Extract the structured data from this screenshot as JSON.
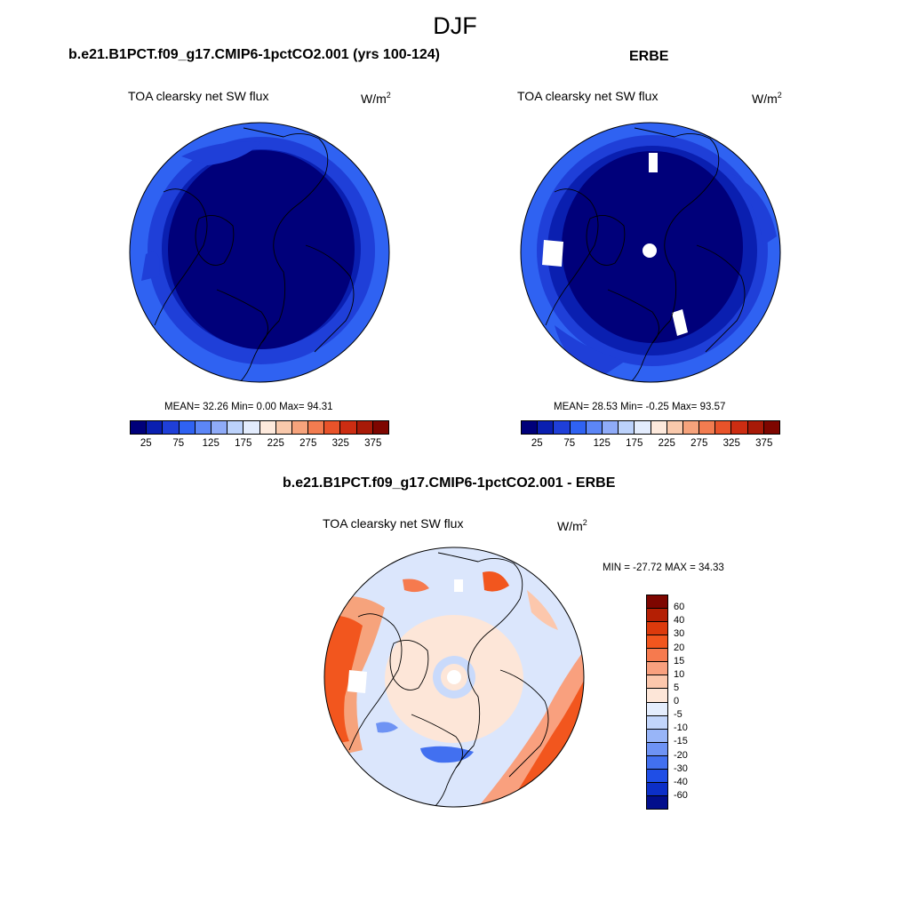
{
  "figure": {
    "season": "DJF"
  },
  "panels": [
    {
      "title": "b.e21.B1PCT.f09_g17.CMIP6-1pctCO2.001 (yrs 100-124)",
      "variable": "TOA clearsky net SW flux",
      "units": "W/m",
      "units_sup": "2",
      "stats": "MEAN=  32.26  Min=   0.00  Max=  94.31"
    },
    {
      "title": "ERBE",
      "variable": "TOA clearsky net SW flux",
      "units": "W/m",
      "units_sup": "2",
      "stats": "MEAN=  28.53  Min=  -0.25  Max=  93.57"
    },
    {
      "title": "b.e21.B1PCT.f09_g17.CMIP6-1pctCO2.001 - ERBE",
      "variable": "TOA clearsky net SW flux",
      "units": "W/m",
      "units_sup": "2",
      "stats": "MIN = -27.72 MAX =  34.33"
    }
  ],
  "colorbar_abs": {
    "colors": [
      "#00007a",
      "#0a1fb0",
      "#1f3fd8",
      "#2f62f2",
      "#5c86f6",
      "#8fabf8",
      "#bcd2fb",
      "#e3ecfd",
      "#fde9dc",
      "#f9c9ac",
      "#f6a37c",
      "#f27c50",
      "#e8532a",
      "#cc2d12",
      "#a81a08",
      "#7e0600"
    ],
    "tick_labels": [
      "25",
      "75",
      "125",
      "175",
      "225",
      "275",
      "325",
      "375"
    ]
  },
  "colorbar_diff": {
    "colors": [
      "#7e0600",
      "#b41f04",
      "#dc3a0c",
      "#f2561e",
      "#f67a4e",
      "#f9a07e",
      "#fcc7ac",
      "#fde6d8",
      "#e4edfd",
      "#c2d5fb",
      "#98b5f8",
      "#6e93f4",
      "#4270f0",
      "#1f4ee6",
      "#0c2fc8",
      "#020e8c"
    ],
    "tick_labels": [
      "60",
      "40",
      "30",
      "20",
      "15",
      "10",
      "5",
      "0",
      "-5",
      "-10",
      "-15",
      "-20",
      "-30",
      "-40",
      "-60"
    ]
  }
}
